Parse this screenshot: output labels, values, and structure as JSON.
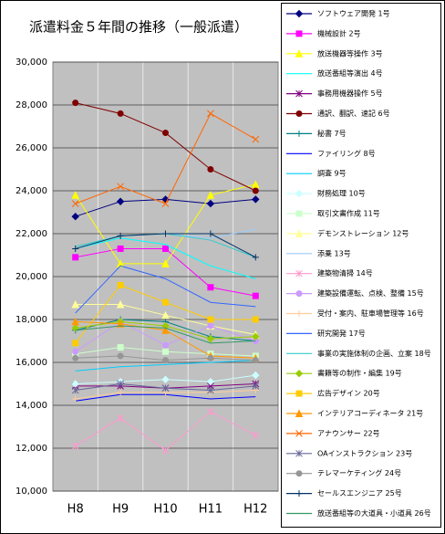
{
  "chart_data": {
    "type": "line",
    "title": "派遣料金５年間の推移（一般派遣）",
    "categories": [
      "H8",
      "H9",
      "H10",
      "H11",
      "H12"
    ],
    "ylim": [
      10000,
      30000
    ],
    "yticks": [
      {
        "value": 10000,
        "label": "10,000"
      },
      {
        "value": 12000,
        "label": "12,000"
      },
      {
        "value": 14000,
        "label": "14,000"
      },
      {
        "value": 16000,
        "label": "16,000"
      },
      {
        "value": 18000,
        "label": "18,000"
      },
      {
        "value": 20000,
        "label": "20,000"
      },
      {
        "value": 22000,
        "label": "22,000"
      },
      {
        "value": 24000,
        "label": "24,000"
      },
      {
        "value": 26000,
        "label": "26,000"
      },
      {
        "value": 28000,
        "label": "28,000"
      },
      {
        "value": 30000,
        "label": "30,000"
      }
    ],
    "grid": true,
    "legend": "right",
    "series": [
      {
        "name": "ソフトウェア開発 1号",
        "color": "#000080",
        "marker": "diamond",
        "values": [
          22800,
          23500,
          23600,
          23400,
          23600
        ]
      },
      {
        "name": "機械設計 2号",
        "color": "#ff00ff",
        "marker": "square",
        "values": [
          20900,
          21300,
          21300,
          19500,
          19100
        ]
      },
      {
        "name": "放送機器等操作 3号",
        "color": "#ffff00",
        "marker": "triangle",
        "values": [
          23800,
          20600,
          20600,
          23800,
          24300
        ]
      },
      {
        "name": "放送番組等演出 4号",
        "color": "#00ffff",
        "marker": "none",
        "values": [
          21300,
          21800,
          21500,
          20500,
          19900
        ]
      },
      {
        "name": "事務用機器操作 5号",
        "color": "#800080",
        "marker": "star",
        "values": [
          14900,
          14900,
          14800,
          14900,
          15000
        ]
      },
      {
        "name": "通訳、翻訳、速記 6号",
        "color": "#800000",
        "marker": "circle",
        "values": [
          28100,
          27600,
          26700,
          25000,
          24000
        ]
      },
      {
        "name": "秘書 7号",
        "color": "#008080",
        "marker": "plus",
        "values": [
          17500,
          18000,
          17900,
          17200,
          17000
        ]
      },
      {
        "name": "ファイリング 8号",
        "color": "#0000ff",
        "marker": "none",
        "values": [
          14200,
          14500,
          14500,
          14300,
          14400
        ]
      },
      {
        "name": "調査 9号",
        "color": "#00ccff",
        "marker": "none",
        "values": [
          15600,
          15800,
          15900,
          16000,
          16100
        ]
      },
      {
        "name": "財務処理 10号",
        "color": "#ccffff",
        "marker": "diamond",
        "values": [
          15000,
          15100,
          15200,
          15100,
          15400
        ]
      },
      {
        "name": "取引文書作成 11号",
        "color": "#ccffcc",
        "marker": "square",
        "values": [
          16400,
          16700,
          16500,
          16400,
          16300
        ]
      },
      {
        "name": "デモンストレーション 12号",
        "color": "#ffff99",
        "marker": "triangle",
        "values": [
          18700,
          18700,
          18200,
          17700,
          17300
        ]
      },
      {
        "name": "添乗 13号",
        "color": "#99ccff",
        "marker": "none",
        "values": [
          21300,
          21900,
          22000,
          21800,
          22200
        ]
      },
      {
        "name": "建築物清掃 14号",
        "color": "#ff99cc",
        "marker": "star",
        "values": [
          12100,
          13400,
          11900,
          13700,
          12600
        ]
      },
      {
        "name": "建築設備運転、点検、整備 15号",
        "color": "#cc99ff",
        "marker": "circle",
        "values": [
          16500,
          17900,
          16800,
          17700,
          17000
        ]
      },
      {
        "name": "受付・案内、駐車場管理等 16号",
        "color": "#ffcc99",
        "marker": "plus",
        "values": [
          14300,
          14600,
          14600,
          14600,
          14700
        ]
      },
      {
        "name": "研究開発 17号",
        "color": "#3366ff",
        "marker": "none",
        "values": [
          18300,
          20500,
          19900,
          18800,
          18600
        ]
      },
      {
        "name": "事業の実施体制の企画、立案 18号",
        "color": "#33cccc",
        "marker": "none",
        "values": [
          21400,
          21900,
          22000,
          21700,
          20900
        ]
      },
      {
        "name": "書籍等の制作・編集 19号",
        "color": "#99cc00",
        "marker": "diamond",
        "values": [
          17600,
          17900,
          17700,
          17100,
          17200
        ]
      },
      {
        "name": "広告デザイン 20号",
        "color": "#ffcc00",
        "marker": "square",
        "values": [
          16900,
          19600,
          18800,
          18000,
          18000
        ]
      },
      {
        "name": "インテリアコーディネータ 21号",
        "color": "#ff9900",
        "marker": "triangle",
        "values": [
          17900,
          17800,
          17500,
          16300,
          16200
        ]
      },
      {
        "name": "アナウンサー 22号",
        "color": "#ff6600",
        "marker": "x",
        "values": [
          23400,
          24200,
          23400,
          27600,
          26400
        ]
      },
      {
        "name": "OAインストラクション 23号",
        "color": "#666699",
        "marker": "star",
        "values": [
          14700,
          15000,
          14800,
          14700,
          14900
        ]
      },
      {
        "name": "テレマーケティング 24号",
        "color": "#969696",
        "marker": "circle",
        "values": [
          16200,
          16300,
          16100,
          16200,
          16100
        ]
      },
      {
        "name": "セールスエンジニア 25号",
        "color": "#003366",
        "marker": "plus",
        "values": [
          21300,
          21900,
          22000,
          22000,
          20900
        ]
      },
      {
        "name": "放送番組等の大道具・小道具 26号",
        "color": "#339966",
        "marker": "none",
        "values": [
          17500,
          17700,
          17600,
          16900,
          17000
        ]
      }
    ]
  }
}
